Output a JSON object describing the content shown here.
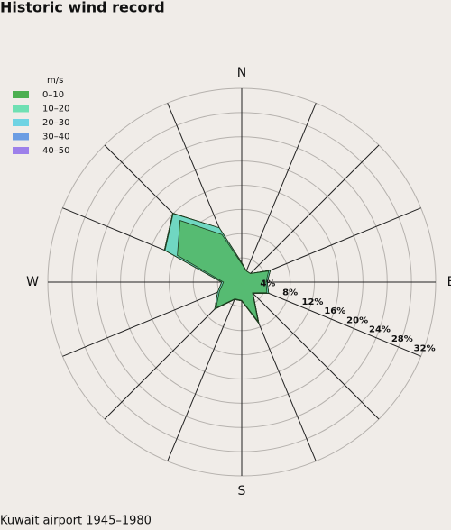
{
  "chart_data": {
    "type": "windrose",
    "title": "Historic wind record",
    "footnote": "Kuwait airport 1945–1980",
    "legend_title": "m/s",
    "categories": [
      "N",
      null,
      null,
      null,
      "E",
      null,
      null,
      null,
      "S",
      null,
      null,
      null,
      "W",
      null,
      null,
      null
    ],
    "series": [
      {
        "name": "0–10",
        "color": "#4caf50",
        "values": [
          3,
          2,
          2,
          4.8,
          4,
          4.5,
          2.5,
          7,
          3,
          3,
          6,
          4,
          3,
          11.5,
          14.4,
          8.5
        ]
      },
      {
        "name": "10–20",
        "color": "#6fe0b3",
        "values": [
          0.2,
          0,
          0,
          0.3,
          0.2,
          0.3,
          0.1,
          0.4,
          0.1,
          0.1,
          0.3,
          0.3,
          0.3,
          2.2,
          1.6,
          1.2
        ]
      },
      {
        "name": "20–30",
        "color": "#6fd3e3",
        "values": [
          0,
          0,
          0,
          0,
          0,
          0,
          0,
          0,
          0,
          0,
          0,
          0,
          0,
          0.1,
          0.1,
          0
        ]
      },
      {
        "name": "30–40",
        "color": "#6b9de3",
        "values": [
          0,
          0,
          0,
          0,
          0,
          0,
          0,
          0,
          0,
          0,
          0,
          0,
          0,
          0,
          0,
          0
        ]
      },
      {
        "name": "40–50",
        "color": "#9d80ea",
        "values": [
          0,
          0,
          0,
          0,
          0,
          0,
          0,
          0,
          0,
          0,
          0,
          0,
          0,
          0,
          0,
          0
        ]
      }
    ],
    "rlim": [
      0,
      32
    ],
    "rticks": [
      {
        "value": 4,
        "label": "4%"
      },
      {
        "value": 8,
        "label": "8%"
      },
      {
        "value": 12,
        "label": "12%"
      },
      {
        "value": 16,
        "label": "16%"
      },
      {
        "value": 20,
        "label": "20%"
      },
      {
        "value": 24,
        "label": "24%"
      },
      {
        "value": 28,
        "label": "28%"
      },
      {
        "value": 32,
        "label": "32%"
      }
    ]
  }
}
